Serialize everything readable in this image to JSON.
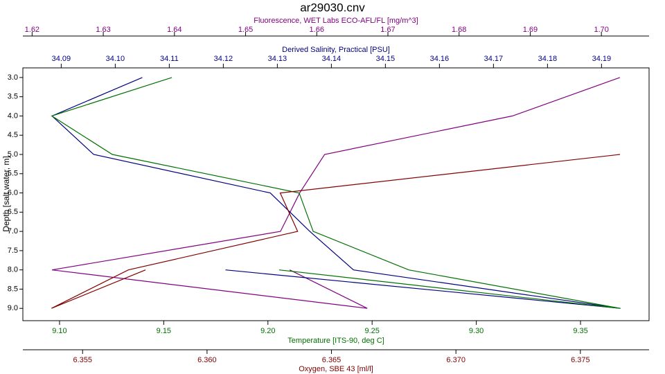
{
  "chart_data": {
    "type": "line",
    "title": "ar29030.cnv",
    "y_label": "Depth [salt water, m]",
    "y_inverted": true,
    "ylim": [
      2.75,
      9.32
    ],
    "yticks": [
      {
        "value": 3,
        "label": "3.0"
      },
      3.5,
      {
        "value": 4,
        "label": "4.0"
      },
      4.5,
      {
        "value": 5,
        "label": "5.0"
      },
      5.5,
      {
        "value": 6,
        "label": "6.0"
      },
      6.5,
      {
        "value": 7,
        "label": "7.0"
      },
      7.5,
      {
        "value": 8,
        "label": "8.0"
      },
      8.5,
      {
        "value": 9,
        "label": "9.0"
      }
    ],
    "depth": [
      3,
      4,
      5,
      6,
      7,
      8,
      9,
      null,
      8,
      9
    ],
    "x_axes": [
      {
        "label": "Fluorescence, WET Labs ECO-AFL/FL [mg/m^3]",
        "color": "#800080",
        "position": "top-outer",
        "xlim": [
          1.6187,
          1.7067
        ],
        "xticks": [
          1.62,
          1.63,
          1.64,
          1.65,
          1.66,
          1.67,
          1.68,
          1.69,
          {
            "value": 1.7,
            "label": "1.70"
          }
        ]
      },
      {
        "label": "Derived Salinity, Practical [PSU]",
        "color": "#000080",
        "position": "top",
        "xlim": [
          34.0829,
          34.1988
        ],
        "xticks": [
          34.09,
          {
            "value": 34.1,
            "label": "34.10"
          },
          34.11,
          34.12,
          34.13,
          34.14,
          34.15,
          34.16,
          34.17,
          34.18,
          34.19
        ]
      },
      {
        "label": "Temperature [ITS-90, deg C]",
        "color": "#007000",
        "position": "bottom",
        "xlim": [
          9.0824,
          9.3829
        ],
        "xticks": [
          {
            "value": 9.1,
            "label": "9.10"
          },
          9.15,
          {
            "value": 9.2,
            "label": "9.20"
          },
          9.25,
          {
            "value": 9.3,
            "label": "9.30"
          },
          9.35
        ]
      },
      {
        "label": "Oxygen, SBE 43 [ml/l]",
        "color": "#800000",
        "position": "bottom-outer",
        "xlim": [
          6.3526,
          6.37776
        ],
        "xticks": [
          6.355,
          {
            "value": 6.36,
            "label": "6.360"
          },
          6.365,
          {
            "value": 6.37,
            "label": "6.370"
          },
          6.375
        ]
      }
    ],
    "series": [
      {
        "name": "Fluorescence",
        "color": "#800080",
        "axis": 0,
        "values": [
          1.7026,
          1.6875,
          1.6611,
          1.6576,
          1.6549,
          1.6228,
          1.6671,
          null,
          1.6562,
          1.6671
        ]
      },
      {
        "name": "Salinity",
        "color": "#000080",
        "axis": 1,
        "values": [
          34.105,
          34.0883,
          34.096,
          34.1287,
          34.136,
          34.1441,
          34.1935,
          null,
          34.1204,
          34.1935
        ]
      },
      {
        "name": "Temperature",
        "color": "#007000",
        "axis": 2,
        "values": [
          9.1539,
          9.0963,
          9.1253,
          9.215,
          9.2217,
          9.2676,
          9.369,
          null,
          9.2054,
          9.369
        ]
      },
      {
        "name": "Oxygen",
        "color": "#800000",
        "axis": 3,
        "values": [
          null,
          null,
          6.37659,
          6.36294,
          6.36364,
          6.35684,
          6.35375,
          null,
          6.35753,
          6.35375
        ]
      }
    ]
  }
}
